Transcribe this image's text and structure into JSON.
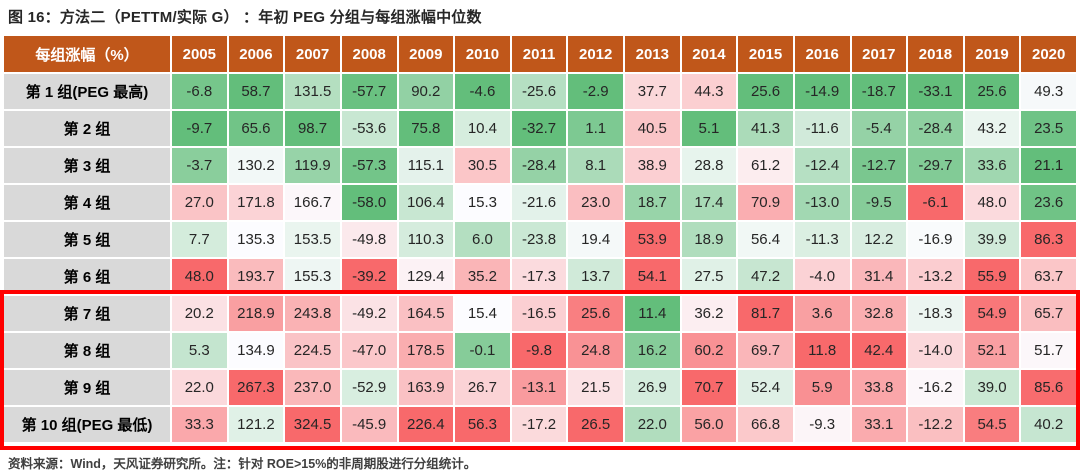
{
  "title": "图 16：方法二（PETTM/实际 G） ：年初 PEG 分组与每组涨幅中位数",
  "footer": "资料来源：Wind，天风证券研究所。注：针对 ROE>15%的非周期股进行分组统计。",
  "chart_data": {
    "type": "heatmap",
    "title": "图 16：方法二（PETTM/实际 G） ：年初 PEG 分组与每组涨幅中位数",
    "corner_label": "每组涨幅（%）",
    "columns": [
      "2005",
      "2006",
      "2007",
      "2008",
      "2009",
      "2010",
      "2011",
      "2012",
      "2013",
      "2014",
      "2015",
      "2016",
      "2017",
      "2018",
      "2019",
      "2020"
    ],
    "rows": [
      {
        "label": "第 1 组(PEG 最高)",
        "values": [
          -6.8,
          58.7,
          131.5,
          -57.7,
          90.2,
          -4.6,
          -25.6,
          -2.9,
          37.7,
          44.3,
          25.6,
          -14.9,
          -18.7,
          -33.1,
          25.6,
          49.3
        ]
      },
      {
        "label": "第 2 组",
        "values": [
          -9.7,
          65.6,
          98.7,
          -53.6,
          75.8,
          10.4,
          -32.7,
          1.1,
          40.5,
          5.1,
          41.3,
          -11.6,
          -5.4,
          -28.4,
          43.2,
          23.5
        ]
      },
      {
        "label": "第 3 组",
        "values": [
          -3.7,
          130.2,
          119.9,
          -57.3,
          115.1,
          30.5,
          -28.4,
          8.1,
          38.9,
          28.8,
          61.2,
          -12.4,
          -12.7,
          -29.7,
          33.6,
          21.1
        ]
      },
      {
        "label": "第 4 组",
        "values": [
          27.0,
          171.8,
          166.7,
          -58.0,
          106.4,
          15.3,
          -21.6,
          23.0,
          18.7,
          17.4,
          70.9,
          -13.0,
          -9.5,
          -6.1,
          48.0,
          23.6
        ]
      },
      {
        "label": "第 5 组",
        "values": [
          7.7,
          135.3,
          153.5,
          -49.8,
          110.3,
          6.0,
          -23.8,
          19.4,
          53.9,
          18.9,
          56.4,
          -11.3,
          12.2,
          -16.9,
          39.9,
          86.3
        ]
      },
      {
        "label": "第 6 组",
        "values": [
          48.0,
          193.7,
          155.3,
          -39.2,
          129.4,
          35.2,
          -17.3,
          13.7,
          54.1,
          27.5,
          47.2,
          -4.0,
          31.4,
          -13.2,
          55.9,
          63.7
        ]
      },
      {
        "label": "第 7 组",
        "values": [
          20.2,
          218.9,
          243.8,
          -49.2,
          164.5,
          15.4,
          -16.5,
          25.6,
          11.4,
          36.2,
          81.7,
          3.6,
          32.8,
          -18.3,
          54.9,
          65.7
        ]
      },
      {
        "label": "第 8 组",
        "values": [
          5.3,
          134.9,
          224.5,
          -47.0,
          178.5,
          -0.1,
          -9.8,
          24.8,
          16.2,
          60.2,
          69.7,
          11.8,
          42.4,
          -14.0,
          52.1,
          51.7
        ]
      },
      {
        "label": "第 9 组",
        "values": [
          22.0,
          267.3,
          237.0,
          -52.9,
          163.9,
          26.7,
          -13.1,
          21.5,
          26.9,
          70.7,
          52.4,
          5.9,
          33.8,
          -16.2,
          39.0,
          85.6
        ]
      },
      {
        "label": "第 10 组(PEG 最低)",
        "values": [
          33.3,
          121.2,
          324.5,
          -45.9,
          226.4,
          56.3,
          -17.2,
          26.5,
          22.0,
          56.0,
          66.8,
          -9.3,
          33.1,
          -12.2,
          54.5,
          40.2
        ]
      }
    ],
    "colorscale": {
      "low": "#63BE7B",
      "mid": "#FCFCFF",
      "high": "#F8696B",
      "rule": "per-column 3-color scale: min=green, median=white, max=red"
    },
    "highlight": {
      "description": "red rectangle outlining rows 第 7 组 through 第 10 组(PEG 最低)",
      "color": "#FF0000",
      "row_start": 7,
      "row_end": 10
    },
    "header_bg": "#C0571A",
    "row_label_bg": "#D9D9D9",
    "value_decimals": 1
  }
}
